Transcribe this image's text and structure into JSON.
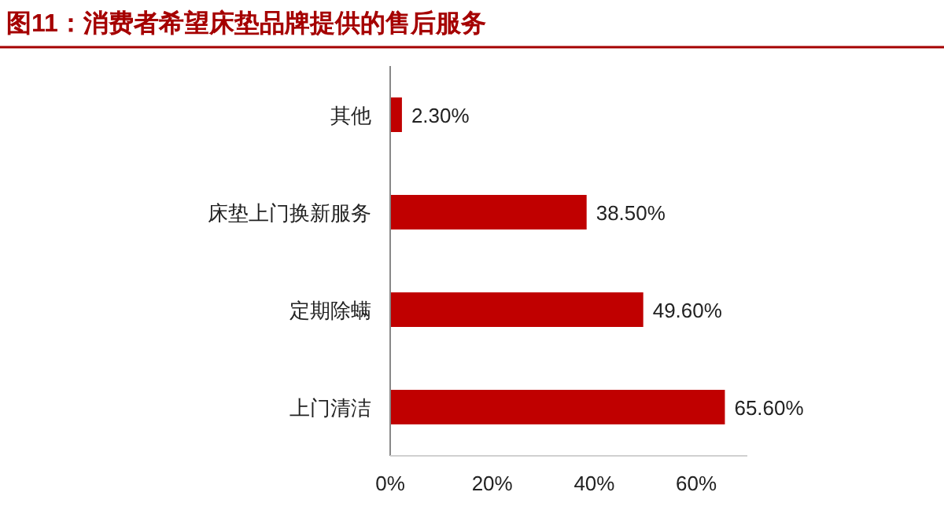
{
  "chart_data": {
    "type": "bar",
    "orientation": "horizontal",
    "title": "图11：消费者希望床垫品牌提供的售后服务",
    "categories": [
      "其他",
      "床垫上门换新服务",
      "定期除螨",
      "上门清洁"
    ],
    "values": [
      2.3,
      38.5,
      49.6,
      65.6
    ],
    "value_labels": [
      "2.30%",
      "38.50%",
      "49.60%",
      "65.60%"
    ],
    "color": "#c00000",
    "xlim": [
      0,
      70
    ],
    "xticks": [
      {
        "value": 0,
        "label": "0%"
      },
      {
        "value": 20,
        "label": "20%"
      },
      {
        "value": 40,
        "label": "40%"
      },
      {
        "value": 60,
        "label": "60%"
      }
    ]
  }
}
